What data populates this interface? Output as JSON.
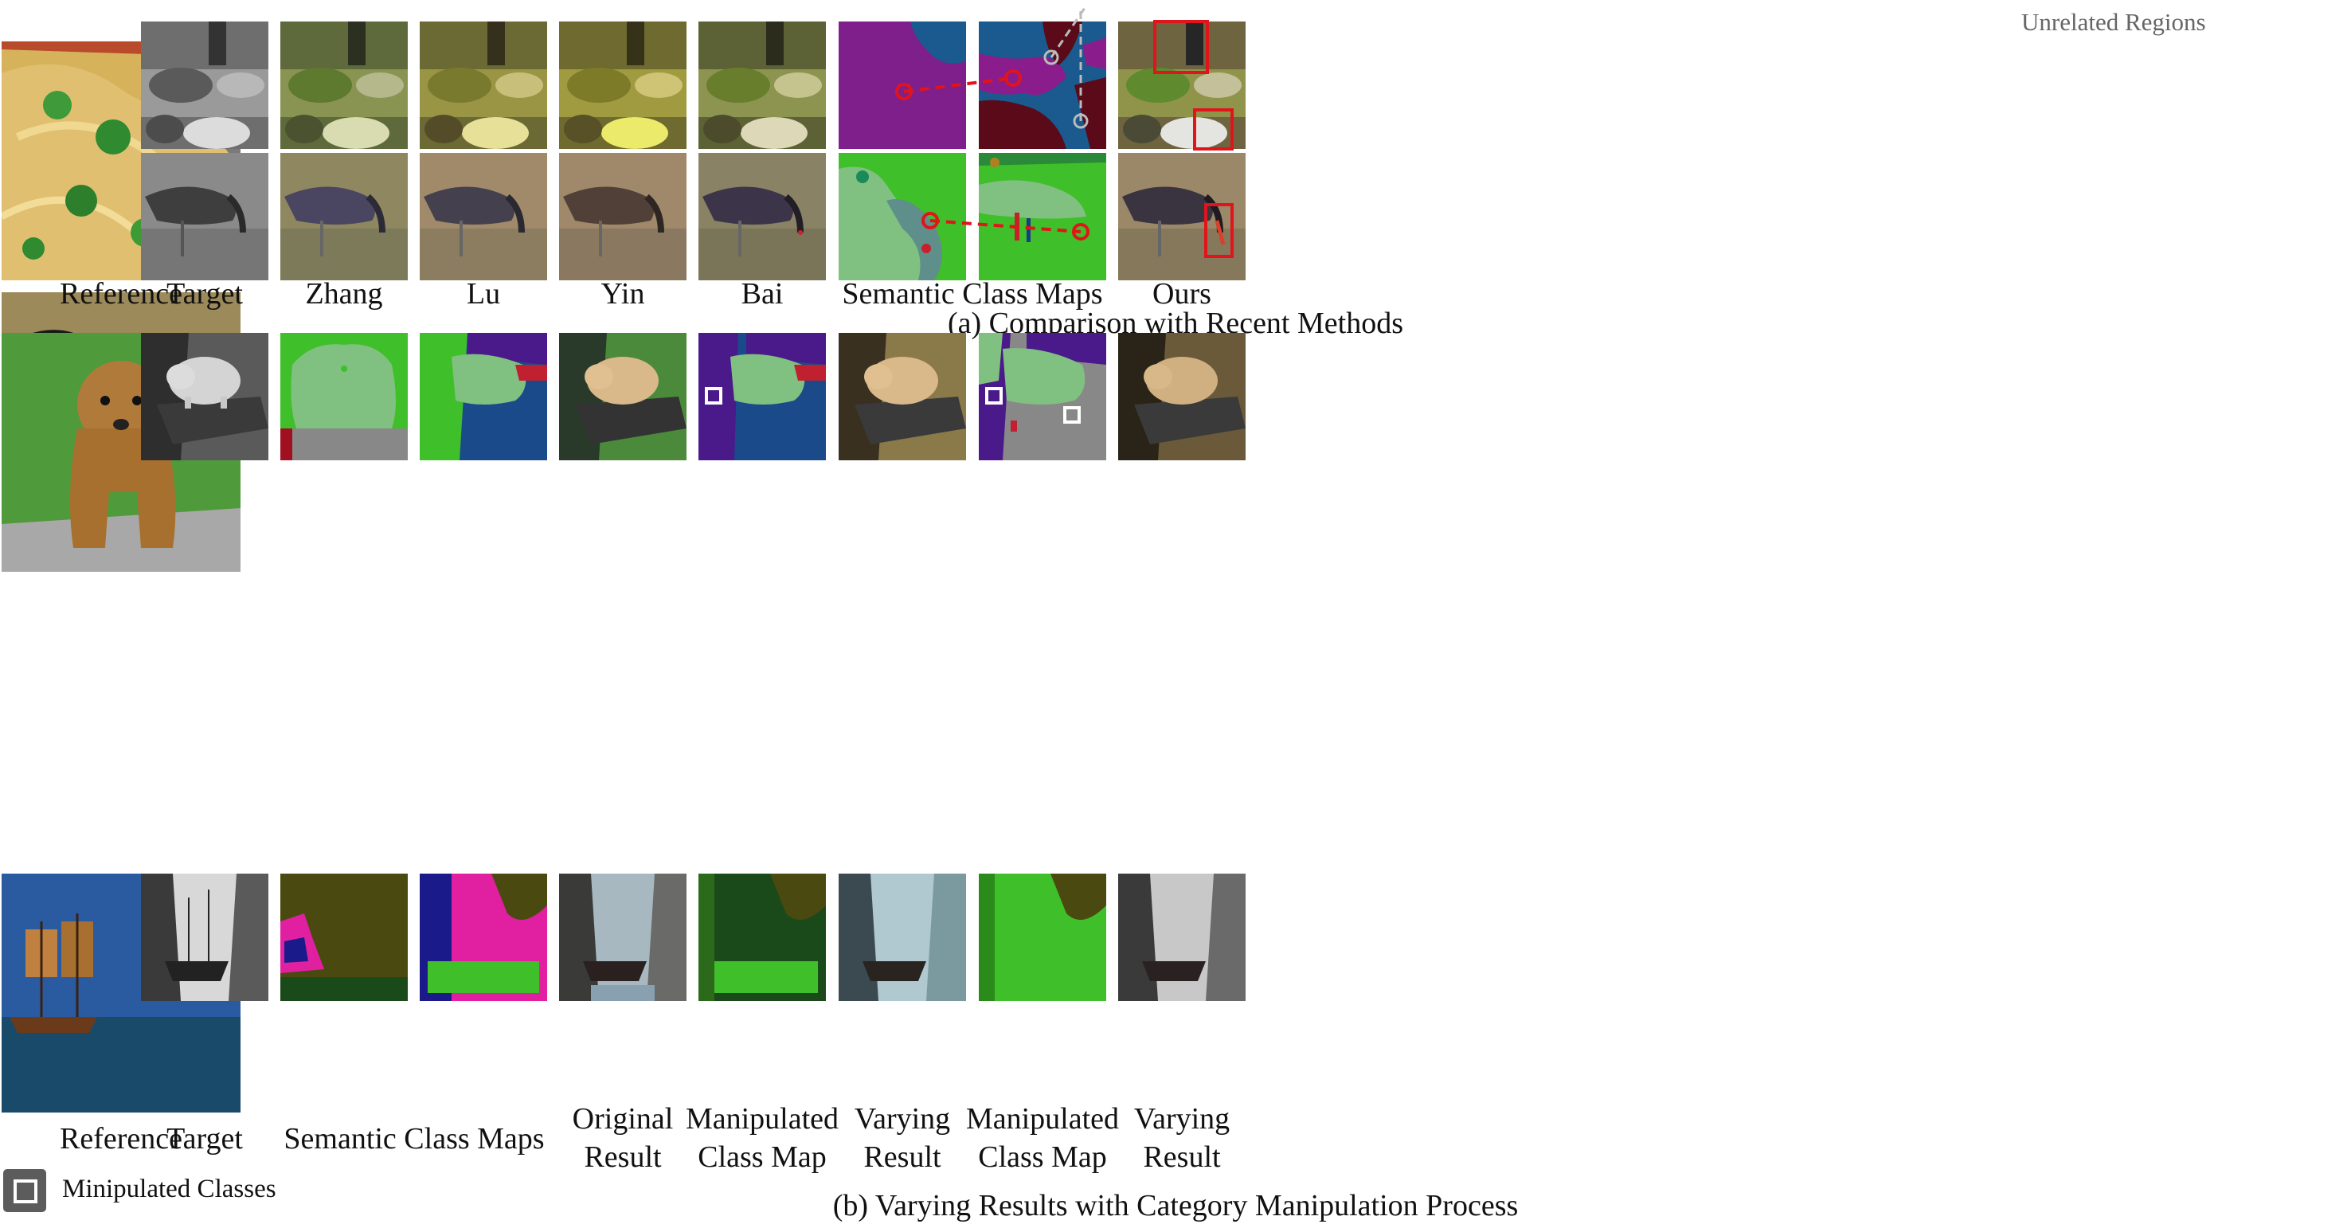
{
  "part_a": {
    "labels": {
      "reference": "Reference",
      "target": "Target",
      "zhang": "Zhang",
      "lu": "Lu",
      "yin": "Yin",
      "bai": "Bai",
      "semantic_maps": "Semantic Class Maps",
      "ours": "Ours"
    },
    "caption": "(a) Comparison with Recent Methods",
    "annotation": "Unrelated Regions"
  },
  "part_b": {
    "labels": {
      "reference": "Reference",
      "target": "Target",
      "semantic_maps": "Semantic Class Maps",
      "original_result": [
        "Original",
        "Result"
      ],
      "manipulated_map_1": [
        "Manipulated",
        "Class Map"
      ],
      "varying_result_1": [
        "Varying",
        "Result"
      ],
      "manipulated_map_2": [
        "Manipulated",
        "Class Map"
      ],
      "varying_result_2": [
        "Varying",
        "Result"
      ]
    },
    "caption": "(b) Varying Results with Category Manipulation Process",
    "legend": "Minipulated Classes"
  },
  "colors": {
    "highlight_red": "#e0141a",
    "unrelated_gray": "#999999",
    "marker_white": "#ffffff"
  }
}
